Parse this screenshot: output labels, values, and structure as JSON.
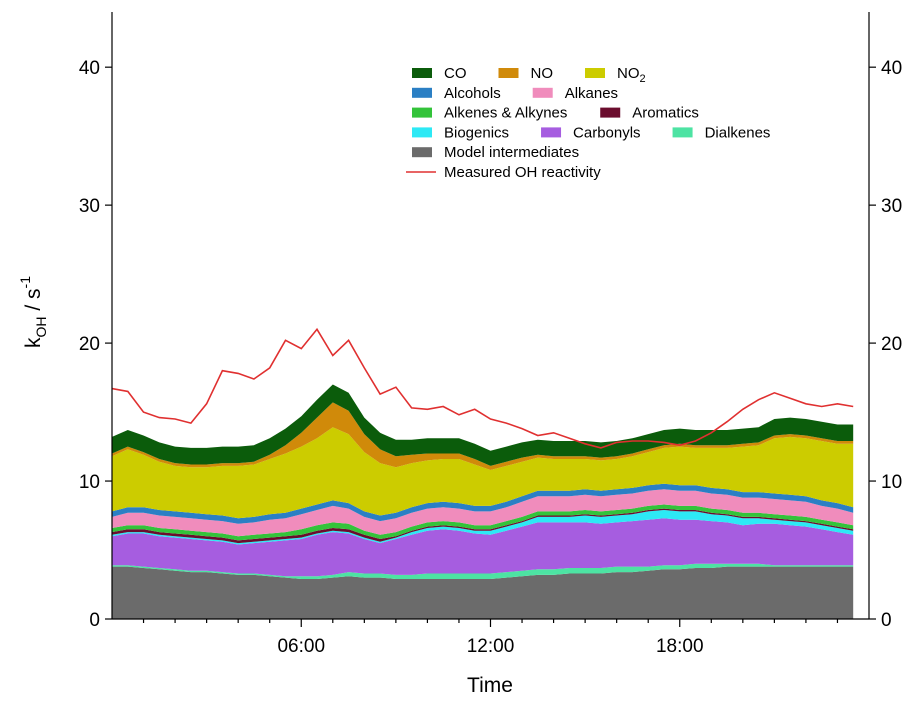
{
  "chart_data": {
    "type": "area",
    "stacked": true,
    "xlabel": "Time",
    "ylabel": "k",
    "ylabel_sub": "OH",
    "ylabel_unit": " / s",
    "ylabel_sup": "-1",
    "ylim": [
      0,
      44
    ],
    "yticks": [
      0,
      10,
      20,
      30,
      40
    ],
    "xlim": [
      0,
      24
    ],
    "xticks": [
      {
        "value": 6,
        "label": "06:00"
      },
      {
        "value": 12,
        "label": "12:00"
      },
      {
        "value": 18,
        "label": "18:00"
      }
    ],
    "right_axis_mirror": true,
    "grid": false,
    "legend_position": "top-center",
    "x": [
      0,
      0.5,
      1,
      1.5,
      2,
      2.5,
      3,
      3.5,
      4,
      4.5,
      5,
      5.5,
      6,
      6.5,
      7,
      7.5,
      8,
      8.5,
      9,
      9.5,
      10,
      10.5,
      11,
      11.5,
      12,
      12.5,
      13,
      13.5,
      14,
      14.5,
      15,
      15.5,
      16,
      16.5,
      17,
      17.5,
      18,
      18.5,
      19,
      19.5,
      20,
      20.5,
      21,
      21.5,
      22,
      22.5,
      23,
      23.5
    ],
    "series": [
      {
        "name": "Model intermediates",
        "color": "#6b6b6b",
        "values": [
          3.8,
          3.8,
          3.7,
          3.6,
          3.5,
          3.4,
          3.4,
          3.3,
          3.2,
          3.2,
          3.1,
          3.0,
          2.9,
          2.9,
          3.0,
          3.1,
          3.0,
          3.0,
          2.9,
          2.9,
          2.9,
          2.9,
          2.9,
          2.9,
          2.9,
          3.0,
          3.1,
          3.2,
          3.2,
          3.3,
          3.3,
          3.3,
          3.4,
          3.4,
          3.5,
          3.6,
          3.6,
          3.7,
          3.7,
          3.8,
          3.8,
          3.8,
          3.8,
          3.8,
          3.8,
          3.8,
          3.8,
          3.8
        ]
      },
      {
        "name": "Dialkenes",
        "color": "#4de3a3",
        "values": [
          0.1,
          0.1,
          0.1,
          0.1,
          0.1,
          0.1,
          0.1,
          0.1,
          0.1,
          0.1,
          0.1,
          0.1,
          0.2,
          0.2,
          0.2,
          0.3,
          0.3,
          0.3,
          0.3,
          0.3,
          0.4,
          0.4,
          0.4,
          0.4,
          0.4,
          0.4,
          0.4,
          0.4,
          0.4,
          0.4,
          0.4,
          0.4,
          0.4,
          0.4,
          0.3,
          0.3,
          0.3,
          0.3,
          0.3,
          0.2,
          0.2,
          0.2,
          0.1,
          0.1,
          0.1,
          0.1,
          0.1,
          0.1
        ]
      },
      {
        "name": "Carbonyls",
        "color": "#a65de0",
        "values": [
          2.1,
          2.3,
          2.4,
          2.3,
          2.3,
          2.3,
          2.2,
          2.2,
          2.1,
          2.2,
          2.4,
          2.6,
          2.7,
          3.0,
          3.1,
          2.8,
          2.5,
          2.2,
          2.6,
          2.9,
          3.1,
          3.2,
          3.1,
          2.9,
          2.8,
          3.0,
          3.2,
          3.4,
          3.4,
          3.3,
          3.3,
          3.2,
          3.2,
          3.3,
          3.4,
          3.4,
          3.3,
          3.2,
          3.1,
          3.0,
          2.8,
          2.9,
          3.0,
          2.9,
          2.8,
          2.6,
          2.4,
          2.2
        ]
      },
      {
        "name": "Biogenics",
        "color": "#2de9f5",
        "values": [
          0.1,
          0.1,
          0.1,
          0.1,
          0.1,
          0.1,
          0.1,
          0.1,
          0.1,
          0.1,
          0.1,
          0.1,
          0.1,
          0.1,
          0.1,
          0.1,
          0.1,
          0.1,
          0.1,
          0.2,
          0.2,
          0.2,
          0.2,
          0.2,
          0.3,
          0.3,
          0.3,
          0.4,
          0.4,
          0.4,
          0.5,
          0.5,
          0.5,
          0.5,
          0.6,
          0.6,
          0.6,
          0.6,
          0.5,
          0.5,
          0.5,
          0.4,
          0.3,
          0.3,
          0.3,
          0.3,
          0.3,
          0.3
        ]
      },
      {
        "name": "Aromatics",
        "color": "#6b0d2e",
        "values": [
          0.2,
          0.2,
          0.2,
          0.2,
          0.2,
          0.2,
          0.2,
          0.2,
          0.2,
          0.2,
          0.2,
          0.2,
          0.2,
          0.2,
          0.2,
          0.2,
          0.2,
          0.2,
          0.1,
          0.1,
          0.1,
          0.1,
          0.1,
          0.1,
          0.1,
          0.1,
          0.1,
          0.1,
          0.1,
          0.1,
          0.1,
          0.1,
          0.1,
          0.1,
          0.1,
          0.1,
          0.1,
          0.1,
          0.1,
          0.1,
          0.1,
          0.1,
          0.1,
          0.1,
          0.1,
          0.1,
          0.1,
          0.1
        ]
      },
      {
        "name": "Alkenes & Alkynes",
        "color": "#33c33a",
        "values": [
          0.3,
          0.3,
          0.3,
          0.3,
          0.3,
          0.3,
          0.3,
          0.3,
          0.3,
          0.3,
          0.3,
          0.3,
          0.4,
          0.4,
          0.4,
          0.4,
          0.3,
          0.3,
          0.3,
          0.3,
          0.3,
          0.3,
          0.3,
          0.3,
          0.3,
          0.3,
          0.3,
          0.3,
          0.3,
          0.3,
          0.3,
          0.3,
          0.3,
          0.3,
          0.3,
          0.3,
          0.3,
          0.3,
          0.3,
          0.3,
          0.3,
          0.3,
          0.3,
          0.3,
          0.3,
          0.3,
          0.3,
          0.3
        ]
      },
      {
        "name": "Alkanes",
        "color": "#f08cbc",
        "values": [
          0.8,
          0.9,
          0.9,
          0.9,
          0.9,
          0.9,
          0.9,
          0.9,
          0.9,
          0.9,
          1.0,
          1.0,
          1.1,
          1.1,
          1.2,
          1.1,
          1.0,
          1.0,
          1.0,
          1.0,
          1.0,
          1.0,
          1.0,
          1.0,
          1.0,
          1.0,
          1.1,
          1.1,
          1.1,
          1.1,
          1.1,
          1.1,
          1.1,
          1.1,
          1.1,
          1.1,
          1.1,
          1.1,
          1.1,
          1.1,
          1.1,
          1.1,
          1.1,
          1.1,
          1.1,
          1.0,
          1.0,
          0.9
        ]
      },
      {
        "name": "Alcohols",
        "color": "#2b7fc4",
        "values": [
          0.4,
          0.4,
          0.4,
          0.4,
          0.4,
          0.4,
          0.4,
          0.4,
          0.4,
          0.4,
          0.4,
          0.4,
          0.4,
          0.4,
          0.4,
          0.4,
          0.4,
          0.4,
          0.4,
          0.4,
          0.4,
          0.4,
          0.4,
          0.4,
          0.4,
          0.4,
          0.4,
          0.4,
          0.4,
          0.4,
          0.4,
          0.4,
          0.4,
          0.4,
          0.4,
          0.4,
          0.4,
          0.4,
          0.4,
          0.4,
          0.4,
          0.4,
          0.4,
          0.4,
          0.4,
          0.4,
          0.4,
          0.4
        ]
      },
      {
        "name": "NO2",
        "color": "#cccc00",
        "values": [
          4.0,
          4.2,
          3.8,
          3.5,
          3.3,
          3.3,
          3.4,
          3.6,
          3.8,
          3.8,
          4.0,
          4.3,
          4.5,
          4.8,
          5.3,
          5.0,
          4.3,
          3.8,
          3.3,
          3.2,
          3.1,
          3.1,
          3.2,
          3.0,
          2.6,
          2.6,
          2.5,
          2.4,
          2.3,
          2.3,
          2.2,
          2.2,
          2.2,
          2.3,
          2.4,
          2.6,
          2.8,
          2.7,
          2.9,
          3.0,
          3.3,
          3.4,
          4.0,
          4.2,
          4.2,
          4.3,
          4.3,
          4.6
        ]
      },
      {
        "name": "NO",
        "color": "#d08a0a",
        "values": [
          0.2,
          0.2,
          0.2,
          0.2,
          0.2,
          0.2,
          0.2,
          0.2,
          0.2,
          0.2,
          0.3,
          0.6,
          1.0,
          1.5,
          1.8,
          1.7,
          1.3,
          1.0,
          0.8,
          0.6,
          0.5,
          0.4,
          0.4,
          0.4,
          0.3,
          0.3,
          0.3,
          0.2,
          0.2,
          0.2,
          0.2,
          0.2,
          0.2,
          0.2,
          0.2,
          0.2,
          0.2,
          0.2,
          0.2,
          0.2,
          0.2,
          0.2,
          0.2,
          0.2,
          0.2,
          0.2,
          0.2,
          0.2
        ]
      },
      {
        "name": "CO",
        "color": "#0b5c0b",
        "values": [
          1.2,
          1.2,
          1.2,
          1.2,
          1.2,
          1.2,
          1.2,
          1.2,
          1.2,
          1.2,
          1.2,
          1.2,
          1.2,
          1.3,
          1.3,
          1.3,
          1.2,
          1.2,
          1.2,
          1.1,
          1.1,
          1.1,
          1.1,
          1.1,
          1.1,
          1.1,
          1.1,
          1.1,
          1.1,
          1.1,
          1.1,
          1.1,
          1.1,
          1.1,
          1.1,
          1.1,
          1.1,
          1.1,
          1.1,
          1.1,
          1.1,
          1.1,
          1.2,
          1.2,
          1.2,
          1.2,
          1.2,
          1.2
        ]
      }
    ],
    "measured": {
      "name": "Measured OH reactivity",
      "color": "#e03030",
      "x": [
        0,
        0.5,
        1,
        1.5,
        2,
        2.5,
        3,
        3.5,
        4,
        4.5,
        5,
        5.5,
        6,
        6.5,
        7,
        7.5,
        8,
        8.5,
        9,
        9.5,
        10,
        10.5,
        11,
        11.5,
        12,
        12.5,
        13,
        13.5,
        14,
        14.5,
        15,
        15.5,
        16,
        16.5,
        17,
        17.5,
        18,
        18.5,
        19,
        19.5,
        20,
        20.5,
        21,
        21.5,
        22,
        22.5,
        23,
        23.5
      ],
      "values": [
        16.7,
        16.5,
        15.0,
        14.6,
        14.5,
        14.2,
        15.6,
        18.0,
        17.8,
        17.4,
        18.2,
        20.2,
        19.6,
        21.0,
        19.1,
        20.2,
        18.2,
        16.3,
        16.8,
        15.3,
        15.2,
        15.4,
        14.8,
        15.2,
        14.5,
        14.2,
        13.8,
        13.3,
        13.5,
        13.1,
        12.7,
        12.4,
        12.8,
        12.9,
        12.9,
        12.8,
        12.6,
        12.9,
        13.5,
        14.3,
        15.2,
        15.9,
        16.4,
        16.0,
        15.6,
        15.4,
        15.6,
        15.4
      ]
    },
    "legend": {
      "rows": [
        [
          {
            "series": "CO",
            "label": "CO"
          },
          {
            "series": "NO",
            "label": "NO"
          },
          {
            "series": "NO2",
            "label": "NO",
            "sub": "2"
          }
        ],
        [
          {
            "series": "Alcohols",
            "label": "Alcohols"
          },
          {
            "series": "Alkanes",
            "label": "Alkanes"
          }
        ],
        [
          {
            "series": "Alkenes & Alkynes",
            "label": "Alkenes & Alkynes"
          },
          {
            "series": "Aromatics",
            "label": "Aromatics"
          }
        ],
        [
          {
            "series": "Biogenics",
            "label": "Biogenics"
          },
          {
            "series": "Carbonyls",
            "label": "Carbonyls"
          },
          {
            "series": "Dialkenes",
            "label": "Dialkenes"
          }
        ],
        [
          {
            "series": "Model intermediates",
            "label": "Model intermediates"
          }
        ],
        [
          {
            "series": "Measured OH reactivity",
            "label": "Measured OH reactivity",
            "line": true
          }
        ]
      ]
    }
  }
}
